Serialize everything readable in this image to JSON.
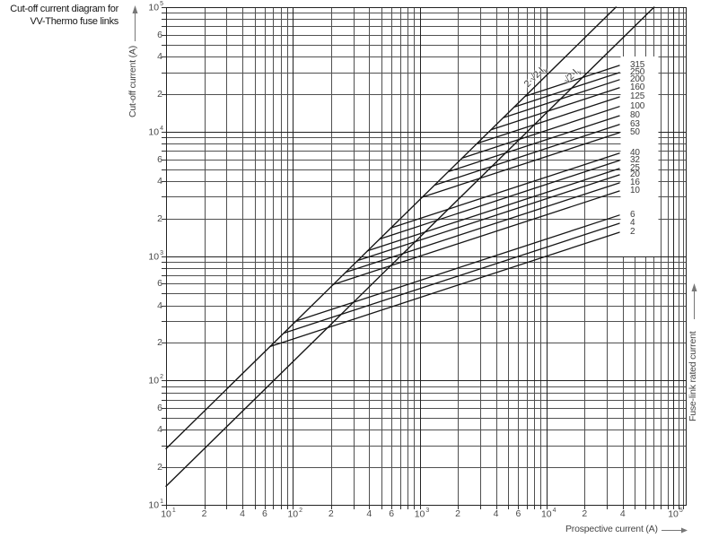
{
  "title": {
    "line1": "Cut-off current diagram for",
    "line2": "VV-Thermo fuse links"
  },
  "axes": {
    "x_label": "Prospective current (A)",
    "y_label": "Cut-off current (A)",
    "right_label": "Fuse-link rated current",
    "x_ticks": [
      {
        "v": 10,
        "t": "10",
        "e": "1"
      },
      {
        "v": 20,
        "t": "2"
      },
      {
        "v": 40,
        "t": "4"
      },
      {
        "v": 60,
        "t": "6"
      },
      {
        "v": 100,
        "t": "10",
        "e": "2"
      },
      {
        "v": 200,
        "t": "2"
      },
      {
        "v": 400,
        "t": "4"
      },
      {
        "v": 600,
        "t": "6"
      },
      {
        "v": 1000,
        "t": "10",
        "e": "3"
      },
      {
        "v": 2000,
        "t": "2"
      },
      {
        "v": 4000,
        "t": "4"
      },
      {
        "v": 6000,
        "t": "6"
      },
      {
        "v": 10000,
        "t": "10",
        "e": "4"
      },
      {
        "v": 20000,
        "t": "2"
      },
      {
        "v": 40000,
        "t": "4"
      },
      {
        "v": 100000,
        "t": "10",
        "e": "5"
      }
    ],
    "y_ticks": [
      {
        "v": 100000,
        "t": "10",
        "e": "5"
      },
      {
        "v": 60000,
        "t": "6"
      },
      {
        "v": 40000,
        "t": "4"
      },
      {
        "v": 20000,
        "t": "2"
      },
      {
        "v": 10000,
        "t": "10",
        "e": "4"
      },
      {
        "v": 6000,
        "t": "6"
      },
      {
        "v": 4000,
        "t": "4"
      },
      {
        "v": 2000,
        "t": "2"
      },
      {
        "v": 1000,
        "t": "10",
        "e": "3"
      },
      {
        "v": 600,
        "t": "6"
      },
      {
        "v": 400,
        "t": "4"
      },
      {
        "v": 200,
        "t": "2"
      },
      {
        "v": 100,
        "t": "10",
        "e": "2"
      },
      {
        "v": 60,
        "t": "6"
      },
      {
        "v": 40,
        "t": "4"
      },
      {
        "v": 20,
        "t": "2"
      },
      {
        "v": 10,
        "t": "10",
        "e": "1"
      }
    ]
  },
  "chart_data": {
    "type": "line",
    "title": "Cut-off current diagram for VV-Thermo fuse links",
    "xlabel": "Prospective current (A)",
    "ylabel": "Cut-off current (A)",
    "xscale": "log",
    "yscale": "log",
    "xlim": [
      10,
      100000
    ],
    "ylim": [
      10,
      100000
    ],
    "grid": true,
    "reference_lines": [
      {
        "label_main": "2·√2·I",
        "label_sub": "k",
        "slope": 2.828,
        "points": [
          [
            10,
            28.3
          ],
          [
            35360,
            100000
          ]
        ]
      },
      {
        "label_main": "√2·I",
        "label_sub": "k",
        "slope": 1.414,
        "points": [
          [
            10,
            14.1
          ],
          [
            70700,
            100000
          ]
        ]
      }
    ],
    "series": [
      {
        "name": "315",
        "points": [
          [
            6800,
            19230
          ],
          [
            37600,
            34000
          ]
        ]
      },
      {
        "name": "250",
        "points": [
          [
            5570,
            15760
          ],
          [
            37600,
            29800
          ]
        ]
      },
      {
        "name": "200",
        "points": [
          [
            4570,
            12920
          ],
          [
            37600,
            26100
          ]
        ]
      },
      {
        "name": "160",
        "points": [
          [
            3650,
            10330
          ],
          [
            37600,
            22500
          ]
        ]
      },
      {
        "name": "125",
        "points": [
          [
            2850,
            8050
          ],
          [
            37600,
            19000
          ]
        ]
      },
      {
        "name": "100",
        "points": [
          [
            2160,
            6120
          ],
          [
            37600,
            15900
          ]
        ]
      },
      {
        "name": "80",
        "points": [
          [
            1690,
            4770
          ],
          [
            37600,
            13400
          ]
        ]
      },
      {
        "name": "63",
        "points": [
          [
            1320,
            3720
          ],
          [
            37600,
            11400
          ]
        ]
      },
      {
        "name": "50",
        "points": [
          [
            1050,
            2970
          ],
          [
            37600,
            9800
          ]
        ]
      },
      {
        "name": "40",
        "points": [
          [
            593,
            1680
          ],
          [
            37600,
            6700
          ]
        ]
      },
      {
        "name": "32",
        "points": [
          [
            486,
            1370
          ],
          [
            37600,
            5860
          ]
        ]
      },
      {
        "name": "25",
        "points": [
          [
            388,
            1100
          ],
          [
            37600,
            5040
          ]
        ]
      },
      {
        "name": "20",
        "points": [
          [
            326,
            920
          ],
          [
            37600,
            4490
          ]
        ]
      },
      {
        "name": "16",
        "points": [
          [
            261,
            740
          ],
          [
            37600,
            3870
          ]
        ]
      },
      {
        "name": "10",
        "points": [
          [
            208,
            590
          ],
          [
            37600,
            3330
          ]
        ]
      },
      {
        "name": "6",
        "points": [
          [
            106,
            300
          ],
          [
            37600,
            2130
          ]
        ]
      },
      {
        "name": "4",
        "points": [
          [
            85,
            240
          ],
          [
            37600,
            1830
          ]
        ]
      },
      {
        "name": "2",
        "points": [
          [
            66,
            187
          ],
          [
            37600,
            1550
          ]
        ]
      }
    ]
  },
  "colors": {
    "grid_minor": "#505050",
    "grid_major": "#222222",
    "curve": "#161616",
    "frame": "#222222",
    "arrow": "#777777",
    "tick_text": "#4a4a4a"
  }
}
